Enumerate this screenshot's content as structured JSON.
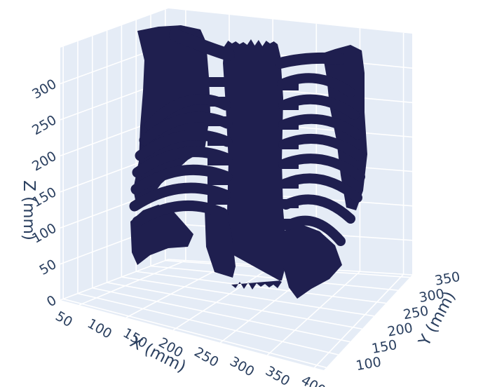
{
  "chart_data": {
    "type": "3d-surface",
    "xlabel": "X (mm)",
    "ylabel": "Y (mm)",
    "zlabel": "Z (mm)",
    "x_ticks": [
      50,
      100,
      150,
      200,
      250,
      300,
      350,
      400
    ],
    "y_ticks": [
      100,
      150,
      200,
      250,
      300,
      350
    ],
    "z_ticks": [
      0,
      50,
      100,
      150,
      200,
      250,
      300
    ],
    "xlim": [
      40,
      410
    ],
    "ylim": [
      80,
      360
    ],
    "zlim": [
      0,
      350
    ],
    "grid": true,
    "scene_bg": "#e5ecf6",
    "grid_color": "#ffffff",
    "mesh_color": "#1f1f4f",
    "text_color": "#2a3f5f",
    "subject": "rib cage bone segmentation"
  }
}
